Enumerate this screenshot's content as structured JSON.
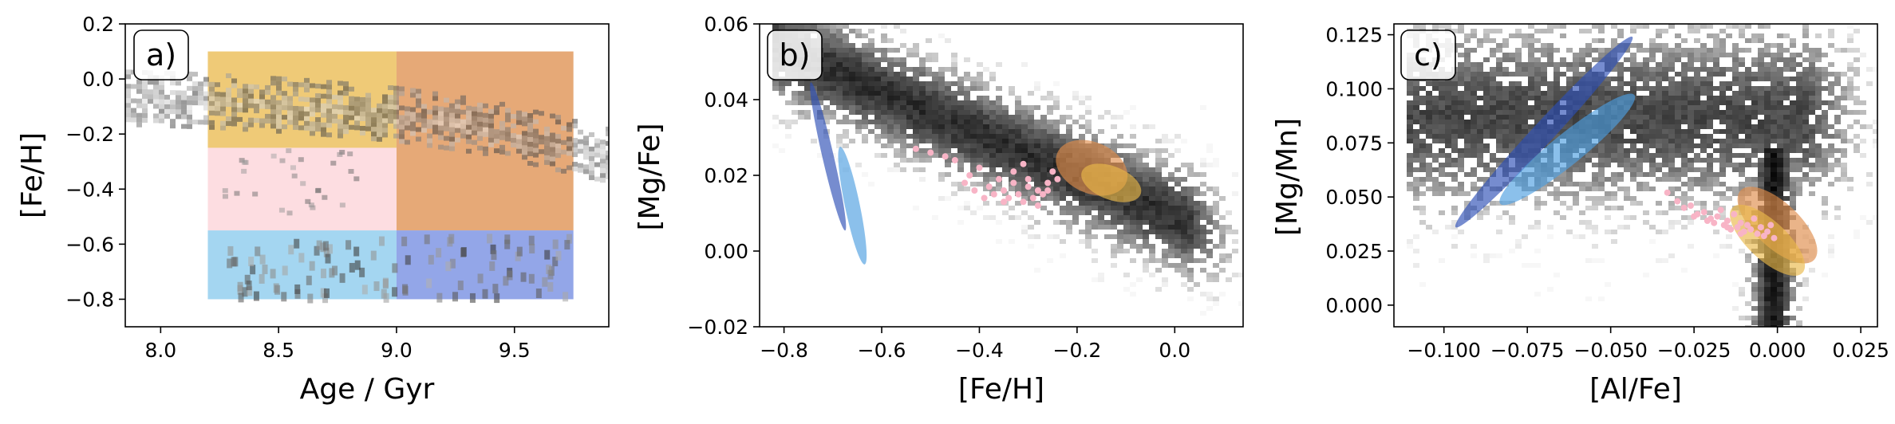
{
  "colors": {
    "gold": "#eab84a",
    "orange": "#de8c49",
    "pink": "#fcd1d7",
    "light_blue": "#86c8ec",
    "blue": "#6f88e0",
    "dark_blue": "#2d4fb6",
    "mid_blue": "#4d9ee0",
    "pink_point": "#f8b4c6"
  },
  "chart_data": [
    {
      "type": "heatmap",
      "panel_label": "a)",
      "xlabel": "Age / Gyr",
      "ylabel": "[Fe/H]",
      "xlim": [
        7.85,
        9.9
      ],
      "ylim": [
        -0.9,
        0.2
      ],
      "xticks": [
        8.0,
        8.5,
        9.0,
        9.5
      ],
      "xtick_labels": [
        "8.0",
        "8.5",
        "9.0",
        "9.5"
      ],
      "yticks": [
        0.2,
        0.0,
        -0.2,
        -0.4,
        -0.6,
        -0.8
      ],
      "ytick_labels": [
        "0.2",
        "0.0",
        "−0.2",
        "−0.4",
        "−0.6",
        "−0.8"
      ],
      "regions": [
        {
          "x": [
            8.2,
            9.0
          ],
          "y": [
            -0.25,
            0.1
          ],
          "color": "gold"
        },
        {
          "x": [
            9.0,
            9.75
          ],
          "y": [
            -0.55,
            0.1
          ],
          "color": "orange"
        },
        {
          "x": [
            8.2,
            9.0
          ],
          "y": [
            -0.55,
            -0.25
          ],
          "color": "pink"
        },
        {
          "x": [
            8.2,
            9.0
          ],
          "y": [
            -0.8,
            -0.55
          ],
          "color": "light_blue"
        },
        {
          "x": [
            9.0,
            9.75
          ],
          "y": [
            -0.8,
            -0.55
          ],
          "color": "blue"
        }
      ],
      "density_track": {
        "x": [
          7.85,
          8.2,
          8.6,
          9.0,
          9.4,
          9.75,
          9.9
        ],
        "y": [
          -0.07,
          -0.08,
          -0.1,
          -0.13,
          -0.18,
          -0.25,
          -0.28
        ]
      }
    },
    {
      "type": "scatter",
      "panel_label": "b)",
      "xlabel": "[Fe/H]",
      "ylabel": "[Mg/Fe]",
      "xlim": [
        -0.85,
        0.14
      ],
      "ylim": [
        -0.02,
        0.06
      ],
      "xticks": [
        -0.8,
        -0.6,
        -0.4,
        -0.2,
        0.0
      ],
      "xtick_labels": [
        "−0.8",
        "−0.6",
        "−0.4",
        "−0.2",
        "0.0"
      ],
      "yticks": [
        -0.02,
        0.0,
        0.02,
        0.04,
        0.06
      ],
      "ytick_labels": [
        "−0.02",
        "0.00",
        "0.02",
        "0.04",
        "0.06"
      ],
      "ellipses": [
        {
          "color": "dark_blue",
          "center": [
            -0.71,
            0.025
          ],
          "points": [
            [
              -0.73,
              0.044
            ],
            [
              -0.74,
              0.036
            ],
            [
              -0.66,
              0.005
            ],
            [
              -0.65,
              0.0
            ],
            [
              -0.7,
              0.02
            ]
          ]
        },
        {
          "color": "mid_blue",
          "center": [
            -0.66,
            0.012
          ],
          "points": [
            [
              -0.68,
              0.03
            ],
            [
              -0.69,
              0.022
            ],
            [
              -0.63,
              -0.001
            ],
            [
              -0.62,
              -0.004
            ],
            [
              -0.64,
              0.005
            ]
          ]
        },
        {
          "color": "orange",
          "center": [
            -0.17,
            0.022
          ],
          "points": [
            [
              -0.26,
              0.028
            ],
            [
              -0.22,
              0.032
            ],
            [
              -0.12,
              0.02
            ],
            [
              -0.06,
              0.012
            ],
            [
              -0.14,
              0.014
            ]
          ]
        },
        {
          "color": "gold",
          "center": [
            -0.13,
            0.018
          ],
          "points": [
            [
              -0.22,
              0.022
            ],
            [
              -0.2,
              0.026
            ],
            [
              -0.1,
              0.016
            ],
            [
              -0.05,
              0.011
            ],
            [
              -0.12,
              0.011
            ]
          ]
        }
      ],
      "pink_points": {
        "x": [
          -0.53,
          -0.5,
          -0.47,
          -0.45,
          -0.43,
          -0.41,
          -0.4,
          -0.38,
          -0.37,
          -0.36,
          -0.35,
          -0.34,
          -0.33,
          -0.32,
          -0.31,
          -0.3,
          -0.29,
          -0.28,
          -0.27,
          -0.26,
          -0.25,
          -0.24,
          -0.42,
          -0.39,
          -0.33,
          -0.3,
          -0.28,
          -0.35,
          -0.26,
          -0.31
        ],
        "y": [
          0.027,
          0.026,
          0.025,
          0.024,
          0.018,
          0.016,
          0.022,
          0.017,
          0.015,
          0.019,
          0.016,
          0.014,
          0.018,
          0.015,
          0.013,
          0.017,
          0.014,
          0.016,
          0.015,
          0.018,
          0.021,
          0.019,
          0.02,
          0.014,
          0.021,
          0.019,
          0.012,
          0.013,
          0.016,
          0.023
        ]
      }
    },
    {
      "type": "scatter",
      "panel_label": "c)",
      "xlabel": "[Al/Fe]",
      "ylabel": "[Mg/Mn]",
      "xlim": [
        -0.115,
        0.03
      ],
      "ylim": [
        -0.01,
        0.13
      ],
      "xticks": [
        -0.1,
        -0.075,
        -0.05,
        -0.025,
        0.0,
        0.025
      ],
      "xtick_labels": [
        "−0.100",
        "−0.075",
        "−0.050",
        "−0.025",
        "0.000",
        "0.025"
      ],
      "yticks": [
        0.0,
        0.025,
        0.05,
        0.075,
        0.1,
        0.125
      ],
      "ytick_labels": [
        "0.000",
        "0.025",
        "0.050",
        "0.075",
        "0.100",
        "0.125"
      ],
      "ellipses": [
        {
          "color": "dark_blue",
          "center": [
            -0.07,
            0.08
          ],
          "points": [
            [
              -0.045,
              0.123
            ],
            [
              -0.05,
              0.12
            ],
            [
              -0.098,
              0.035
            ],
            [
              -0.094,
              0.04
            ],
            [
              -0.07,
              0.078
            ]
          ]
        },
        {
          "color": "mid_blue",
          "center": [
            -0.063,
            0.072
          ],
          "points": [
            [
              -0.048,
              0.096
            ],
            [
              -0.05,
              0.097
            ],
            [
              -0.088,
              0.046
            ],
            [
              -0.085,
              0.05
            ],
            [
              -0.064,
              0.07
            ]
          ]
        },
        {
          "color": "orange",
          "center": [
            0.0,
            0.037
          ],
          "points": [
            [
              -0.012,
              0.052
            ],
            [
              -0.005,
              0.058
            ],
            [
              0.01,
              0.02
            ],
            [
              0.012,
              0.025
            ],
            [
              0.0,
              0.036
            ]
          ]
        },
        {
          "color": "gold",
          "center": [
            -0.003,
            0.03
          ],
          "points": [
            [
              -0.013,
              0.042
            ],
            [
              -0.006,
              0.046
            ],
            [
              0.008,
              0.012
            ],
            [
              0.009,
              0.017
            ],
            [
              -0.002,
              0.028
            ]
          ]
        }
      ],
      "pink_points": {
        "x": [
          -0.033,
          -0.03,
          -0.028,
          -0.026,
          -0.024,
          -0.022,
          -0.02,
          -0.019,
          -0.018,
          -0.016,
          -0.015,
          -0.014,
          -0.012,
          -0.011,
          -0.01,
          -0.009,
          -0.008,
          -0.006,
          -0.005,
          -0.004,
          -0.003,
          -0.002,
          -0.001,
          -0.017,
          -0.013,
          -0.021,
          -0.007,
          -0.025,
          -0.011,
          -0.015
        ],
        "y": [
          0.052,
          0.048,
          0.045,
          0.046,
          0.042,
          0.043,
          0.04,
          0.038,
          0.041,
          0.037,
          0.039,
          0.035,
          0.036,
          0.038,
          0.034,
          0.037,
          0.035,
          0.033,
          0.036,
          0.032,
          0.034,
          0.037,
          0.031,
          0.044,
          0.042,
          0.039,
          0.04,
          0.041,
          0.033,
          0.036
        ]
      }
    }
  ]
}
